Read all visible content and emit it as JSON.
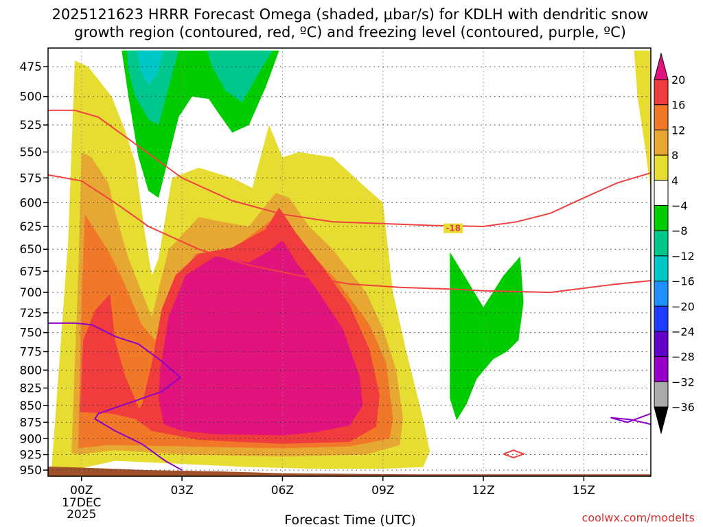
{
  "title_lines": [
    "2025121623 HRRR Forecast Omega (shaded, μbar/s) for KDLH with dendritic snow",
    "growth region (contoured, red, ºC) and freezing level (contoured, purple, ºC)"
  ],
  "credit": "coolwx.com/modelts",
  "chart_data": {
    "type": "contour",
    "title": "2025121623 HRRR Forecast Omega (shaded, μbar/s) for KDLH with dendritic snow growth region (contoured, red, ºC) and freezing level (contoured, purple, ºC)",
    "xlabel": "Forecast Time (UTC)",
    "ylabel": "",
    "x_range_hours": [
      -1,
      17
    ],
    "y_range_hpa": [
      460,
      960
    ],
    "y_scale": "log-pressure (inverted)",
    "x_ticks": [
      {
        "hour": 0,
        "label": "00Z",
        "sub": [
          "17DEC",
          "2025"
        ]
      },
      {
        "hour": 3,
        "label": "03Z",
        "sub": []
      },
      {
        "hour": 6,
        "label": "06Z",
        "sub": []
      },
      {
        "hour": 9,
        "label": "09Z",
        "sub": []
      },
      {
        "hour": 12,
        "label": "12Z",
        "sub": []
      },
      {
        "hour": 15,
        "label": "15Z",
        "sub": []
      }
    ],
    "y_ticks": [
      475,
      500,
      525,
      550,
      575,
      600,
      625,
      650,
      675,
      700,
      725,
      750,
      775,
      800,
      825,
      850,
      875,
      900,
      925,
      950
    ],
    "grid": "dotted",
    "colorbar": {
      "levels": [
        {
          "value": 20,
          "label": "20"
        },
        {
          "value": 16,
          "label": "16"
        },
        {
          "value": 12,
          "label": "12"
        },
        {
          "value": 8,
          "label": "8"
        },
        {
          "value": 4,
          "label": "4"
        },
        {
          "value": -4,
          "label": "−4"
        },
        {
          "value": -8,
          "label": "−8"
        },
        {
          "value": -12,
          "label": "−12"
        },
        {
          "value": -16,
          "label": "−16"
        },
        {
          "value": -20,
          "label": "−20"
        },
        {
          "value": -24,
          "label": "−24"
        },
        {
          "value": -28,
          "label": "−28"
        },
        {
          "value": -32,
          "label": "−32"
        },
        {
          "value": -36,
          "label": "−36"
        }
      ],
      "top_color": "#e0147c",
      "bottom_color": "#000000",
      "bands_top_to_bottom": [
        "#f03c3c",
        "#f07828",
        "#e6a832",
        "#e6dc32",
        "#ffffff",
        "#00cc00",
        "#00c88c",
        "#00c8c8",
        "#1e90ff",
        "#1e3cff",
        "#6000c8",
        "#9600c8",
        "#aaaaaa"
      ]
    },
    "omega_regions": [
      {
        "name": "yellow 4-8",
        "color": "#e6dc32",
        "points": [
          [
            -0.9,
            952
          ],
          [
            -0.4,
            640
          ],
          [
            -0.2,
            470
          ],
          [
            0.2,
            475
          ],
          [
            0.9,
            500
          ],
          [
            1.3,
            530
          ],
          [
            1.6,
            560
          ],
          [
            1.9,
            635
          ],
          [
            2.1,
            680
          ],
          [
            2.3,
            660
          ],
          [
            2.7,
            575
          ],
          [
            3.5,
            565
          ],
          [
            4.5,
            575
          ],
          [
            5.1,
            585
          ],
          [
            5.6,
            525
          ],
          [
            6.0,
            555
          ],
          [
            6.5,
            550
          ],
          [
            7.5,
            555
          ],
          [
            8.5,
            585
          ],
          [
            9.0,
            600
          ],
          [
            9.3,
            700
          ],
          [
            9.7,
            775
          ],
          [
            10.2,
            870
          ],
          [
            10.4,
            920
          ],
          [
            10.2,
            945
          ],
          [
            9.0,
            948
          ],
          [
            7.0,
            948
          ],
          [
            5.0,
            945
          ],
          [
            3.0,
            940
          ],
          [
            1.0,
            935
          ],
          [
            -0.5,
            953
          ]
        ]
      },
      {
        "name": "yellow far right",
        "color": "#e6dc32",
        "points": [
          [
            16.5,
            462
          ],
          [
            17,
            462
          ],
          [
            17,
            590
          ],
          [
            16.85,
            550
          ],
          [
            16.6,
            500
          ]
        ]
      },
      {
        "name": "gold 8-12",
        "color": "#e6a832",
        "points": [
          [
            -0.3,
            922
          ],
          [
            -0.1,
            680
          ],
          [
            0.0,
            550
          ],
          [
            0.3,
            555
          ],
          [
            0.8,
            580
          ],
          [
            1.0,
            610
          ],
          [
            1.4,
            660
          ],
          [
            1.8,
            700
          ],
          [
            2.1,
            730
          ],
          [
            2.6,
            650
          ],
          [
            3.5,
            615
          ],
          [
            4.2,
            620
          ],
          [
            5.0,
            625
          ],
          [
            5.8,
            590
          ],
          [
            6.2,
            595
          ],
          [
            6.8,
            625
          ],
          [
            7.5,
            650
          ],
          [
            8.5,
            700
          ],
          [
            9.0,
            745
          ],
          [
            9.4,
            800
          ],
          [
            9.6,
            870
          ],
          [
            9.5,
            910
          ],
          [
            8.5,
            925
          ],
          [
            6.0,
            928
          ],
          [
            3.0,
            925
          ],
          [
            1.0,
            918
          ],
          [
            -0.1,
            925
          ]
        ]
      },
      {
        "name": "orange 12-16",
        "color": "#f07828",
        "points": [
          [
            -0.1,
            915
          ],
          [
            0.0,
            710
          ],
          [
            0.1,
            612
          ],
          [
            0.8,
            652
          ],
          [
            1.2,
            682
          ],
          [
            1.8,
            740
          ],
          [
            2.2,
            760
          ],
          [
            2.8,
            690
          ],
          [
            3.4,
            655
          ],
          [
            4.5,
            650
          ],
          [
            5.6,
            620
          ],
          [
            6.0,
            615
          ],
          [
            6.6,
            645
          ],
          [
            7.6,
            685
          ],
          [
            8.6,
            740
          ],
          [
            9.1,
            790
          ],
          [
            9.3,
            870
          ],
          [
            9.2,
            900
          ],
          [
            8.0,
            912
          ],
          [
            6.0,
            915
          ],
          [
            3.0,
            912
          ],
          [
            0.8,
            910
          ],
          [
            -0.1,
            915
          ]
        ]
      },
      {
        "name": "red 16-20",
        "color": "#f03c3c",
        "points": [
          [
            -0.05,
            860
          ],
          [
            0.05,
            760
          ],
          [
            0.4,
            722
          ],
          [
            0.85,
            702
          ],
          [
            1.0,
            760
          ],
          [
            1.3,
            808
          ],
          [
            1.55,
            835
          ],
          [
            1.7,
            855
          ],
          [
            1.8,
            850
          ],
          [
            2.1,
            790
          ],
          [
            2.4,
            720
          ],
          [
            2.8,
            680
          ],
          [
            3.5,
            655
          ],
          [
            4.5,
            648
          ],
          [
            5.5,
            628
          ],
          [
            5.9,
            605
          ],
          [
            6.4,
            632
          ],
          [
            7.2,
            670
          ],
          [
            8.0,
            715
          ],
          [
            8.6,
            772
          ],
          [
            8.9,
            835
          ],
          [
            8.8,
            882
          ],
          [
            8.0,
            905
          ],
          [
            6.0,
            908
          ],
          [
            3.5,
            902
          ],
          [
            2.1,
            888
          ],
          [
            1.6,
            870
          ],
          [
            0.9,
            862
          ],
          [
            0.0,
            860
          ]
        ]
      },
      {
        "name": "magenta >20",
        "color": "#e0147c",
        "points": [
          [
            2.35,
            800
          ],
          [
            2.6,
            730
          ],
          [
            3.1,
            680
          ],
          [
            4.0,
            658
          ],
          [
            5.0,
            665
          ],
          [
            5.6,
            652
          ],
          [
            6.0,
            640
          ],
          [
            6.4,
            664
          ],
          [
            7.0,
            695
          ],
          [
            7.8,
            745
          ],
          [
            8.3,
            808
          ],
          [
            8.4,
            850
          ],
          [
            8.0,
            880
          ],
          [
            7.0,
            890
          ],
          [
            6.0,
            895
          ],
          [
            4.0,
            893
          ],
          [
            3.0,
            888
          ],
          [
            2.45,
            878
          ],
          [
            2.3,
            840
          ]
        ]
      },
      {
        "name": "green aloft",
        "color": "#00cc00",
        "points": [
          [
            1.2,
            462
          ],
          [
            5.9,
            462
          ],
          [
            5.5,
            492
          ],
          [
            5.0,
            525
          ],
          [
            4.5,
            532
          ],
          [
            4.1,
            515
          ],
          [
            3.8,
            502
          ],
          [
            3.3,
            500
          ],
          [
            2.9,
            518
          ],
          [
            2.6,
            555
          ],
          [
            2.3,
            595
          ],
          [
            2.0,
            588
          ],
          [
            1.7,
            555
          ],
          [
            1.4,
            500
          ]
        ]
      },
      {
        "name": "teal aloft",
        "color": "#00c88c",
        "points": [
          [
            1.35,
            462
          ],
          [
            2.9,
            462
          ],
          [
            2.6,
            492
          ],
          [
            2.3,
            525
          ],
          [
            2.0,
            520
          ],
          [
            1.6,
            500
          ],
          [
            1.4,
            478
          ]
        ]
      },
      {
        "name": "cyan aloft",
        "color": "#00c8c8",
        "points": [
          [
            1.65,
            462
          ],
          [
            2.45,
            462
          ],
          [
            2.25,
            482
          ],
          [
            2.0,
            490
          ],
          [
            1.8,
            480
          ]
        ]
      },
      {
        "name": "teal aloft right",
        "color": "#00c88c",
        "points": [
          [
            3.75,
            462
          ],
          [
            5.7,
            462
          ],
          [
            5.3,
            480
          ],
          [
            4.8,
            505
          ],
          [
            4.3,
            495
          ],
          [
            3.9,
            475
          ]
        ]
      },
      {
        "name": "green right",
        "color": "#00cc00",
        "points": [
          [
            11.0,
            653
          ],
          [
            11.4,
            678
          ],
          [
            12.0,
            718
          ],
          [
            12.6,
            680
          ],
          [
            13.1,
            658
          ],
          [
            13.2,
            712
          ],
          [
            13.05,
            760
          ],
          [
            12.7,
            775
          ],
          [
            12.3,
            785
          ],
          [
            11.8,
            812
          ],
          [
            11.5,
            848
          ],
          [
            11.2,
            872
          ],
          [
            11.0,
            840
          ],
          [
            11.0,
            720
          ]
        ]
      }
    ],
    "dendritic_contours": [
      {
        "name": "-18 upper",
        "label": "-18",
        "label_at": [
          11.1,
          627
        ],
        "color": "#f04040",
        "points": [
          [
            -1,
            512
          ],
          [
            -0.2,
            512
          ],
          [
            0.5,
            518
          ],
          [
            1.5,
            540
          ],
          [
            3,
            575
          ],
          [
            4.5,
            598
          ],
          [
            6,
            612
          ],
          [
            7.5,
            620
          ],
          [
            9,
            622
          ],
          [
            10.5,
            624
          ],
          [
            12,
            625
          ],
          [
            13,
            620
          ],
          [
            14,
            611
          ],
          [
            15,
            595
          ],
          [
            16,
            580
          ],
          [
            17,
            570
          ]
        ]
      },
      {
        "name": "-12 lower",
        "label": "",
        "color": "#f04040",
        "points": [
          [
            -1,
            572
          ],
          [
            0,
            578
          ],
          [
            1,
            600
          ],
          [
            2,
            625
          ],
          [
            3.5,
            650
          ],
          [
            5,
            668
          ],
          [
            6.5,
            680
          ],
          [
            8,
            690
          ],
          [
            9.5,
            694
          ],
          [
            11,
            696
          ],
          [
            12,
            698
          ],
          [
            13,
            699
          ],
          [
            14,
            700
          ],
          [
            15,
            695
          ],
          [
            16,
            690
          ],
          [
            17,
            686
          ]
        ]
      },
      {
        "name": "small closed",
        "label": "",
        "color": "#f04040",
        "points": [
          [
            12.6,
            924
          ],
          [
            12.9,
            918
          ],
          [
            13.2,
            924
          ],
          [
            12.9,
            930
          ],
          [
            12.6,
            924
          ]
        ]
      }
    ],
    "freezing_contours": [
      {
        "name": "0C line",
        "color": "#8c00c8",
        "points": [
          [
            -1,
            738
          ],
          [
            -0.2,
            738
          ],
          [
            0.3,
            740
          ],
          [
            1.0,
            755
          ],
          [
            1.7,
            765
          ],
          [
            2.4,
            788
          ],
          [
            2.95,
            810
          ],
          [
            2.4,
            830
          ],
          [
            1.5,
            845
          ],
          [
            0.5,
            862
          ],
          [
            0.4,
            870
          ],
          [
            1.0,
            888
          ],
          [
            1.8,
            908
          ],
          [
            2.5,
            935
          ],
          [
            3.0,
            950
          ]
        ]
      },
      {
        "name": "0C right",
        "color": "#8c00c8",
        "points": [
          [
            17,
            862
          ],
          [
            16.3,
            875
          ],
          [
            15.8,
            868
          ],
          [
            16.4,
            871
          ],
          [
            17,
            878
          ]
        ]
      }
    ],
    "terrain": {
      "color": "#a0522d",
      "top_points": [
        [
          -1,
          944
        ],
        [
          0,
          946
        ],
        [
          2,
          950
        ],
        [
          4,
          952
        ],
        [
          6,
          955
        ],
        [
          8,
          956
        ],
        [
          10,
          957
        ],
        [
          12,
          957
        ],
        [
          14,
          957
        ],
        [
          17,
          957
        ]
      ]
    }
  }
}
